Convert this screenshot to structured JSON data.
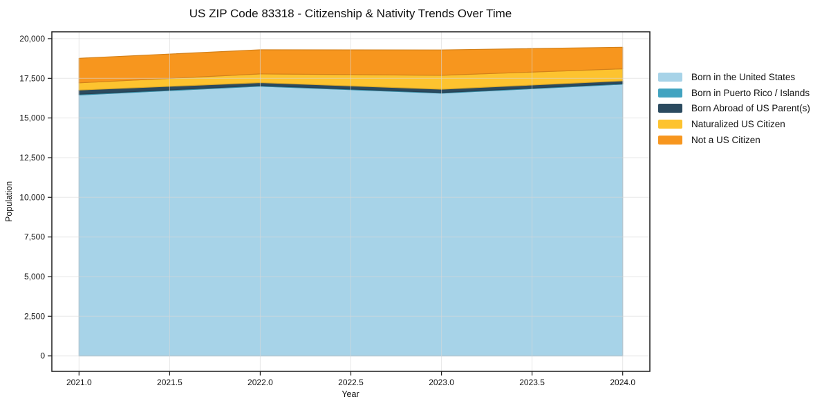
{
  "chart_data": {
    "type": "area",
    "stacked": true,
    "title": "US ZIP Code 83318 - Citizenship & Nativity Trends Over Time",
    "xlabel": "Year",
    "ylabel": "Population",
    "x": [
      2021,
      2022,
      2023,
      2024
    ],
    "series": [
      {
        "name": "Born in the United States",
        "color": "#a7d3e8",
        "values": [
          16450,
          17000,
          16560,
          17130
        ]
      },
      {
        "name": "Born in Puerto Rico / Islands",
        "color": "#41a3c0",
        "values": [
          50,
          45,
          40,
          40
        ]
      },
      {
        "name": "Born Abroad of US Parent(s)",
        "color": "#2b4a5f",
        "values": [
          260,
          185,
          215,
          170
        ]
      },
      {
        "name": "Naturalized US Citizen",
        "color": "#fdc32f",
        "values": [
          455,
          550,
          875,
          760
        ]
      },
      {
        "name": "Not a US Citizen",
        "color": "#f7961e",
        "values": [
          1550,
          1520,
          1600,
          1360
        ]
      }
    ],
    "xlim": [
      2020.85,
      2024.15
    ],
    "ylim": [
      -973,
      20433
    ],
    "xticks": {
      "values": [
        2021,
        2021.5,
        2022,
        2022.5,
        2023,
        2023.5,
        2024
      ],
      "labels": [
        "2021.0",
        "2021.5",
        "2022.0",
        "2022.5",
        "2023.0",
        "2023.5",
        "2024.0"
      ]
    },
    "yticks": {
      "values": [
        0,
        2500,
        5000,
        7500,
        10000,
        12500,
        15000,
        17500,
        20000
      ],
      "labels": [
        "0",
        "2,500",
        "5,000",
        "7,500",
        "10,000",
        "12,500",
        "15,000",
        "17,500",
        "20,000"
      ]
    },
    "grid": true,
    "legend_position": "right",
    "text_color": "#111111"
  }
}
